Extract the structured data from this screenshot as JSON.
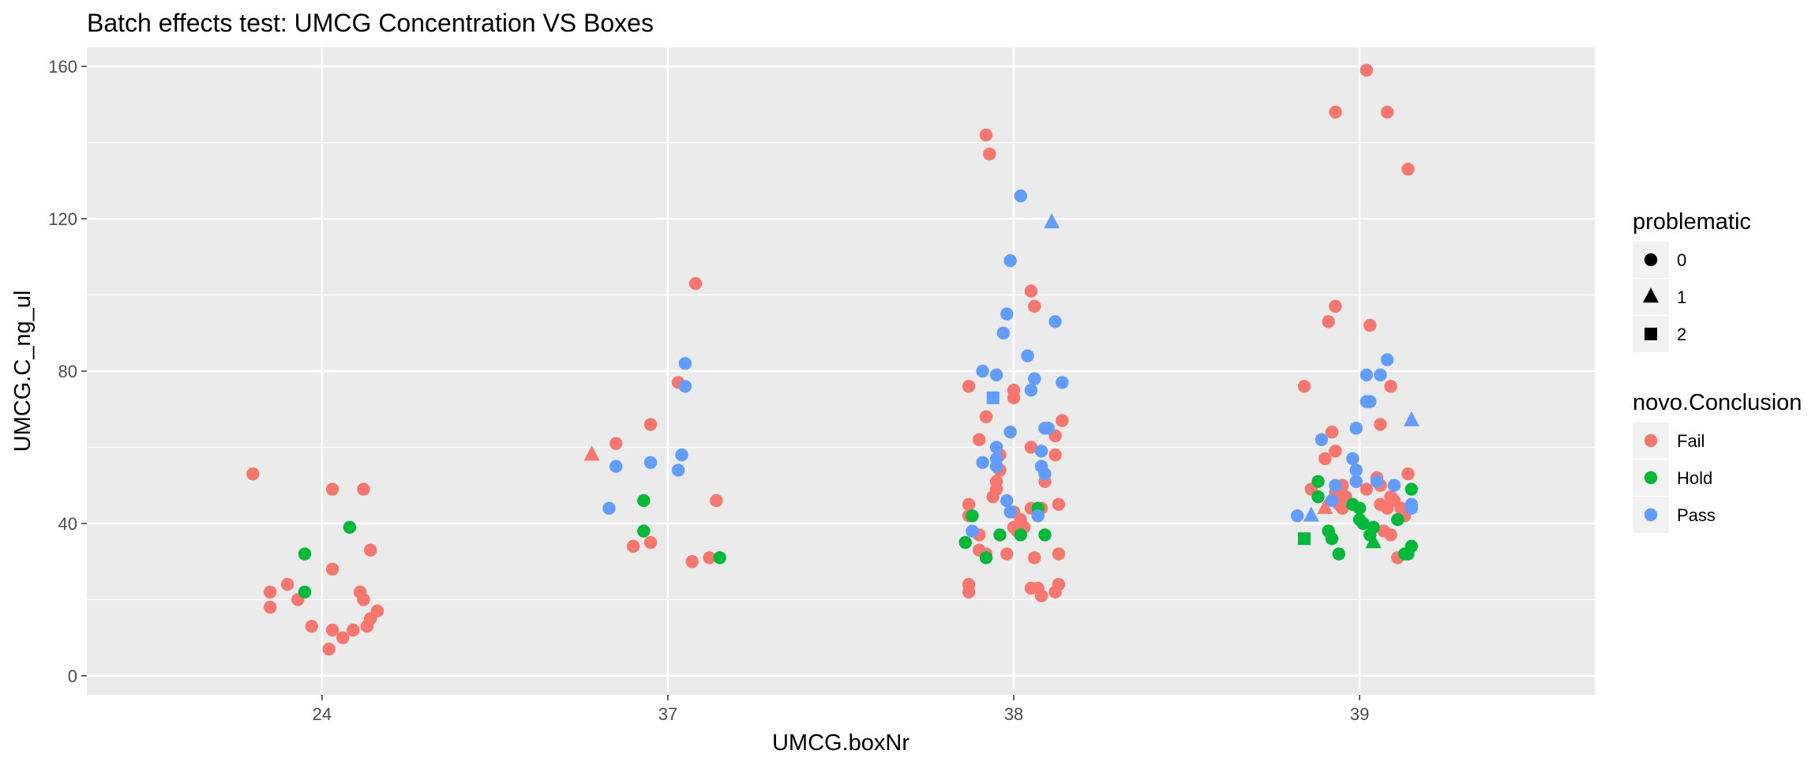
{
  "chart_data": {
    "type": "scatter",
    "title": "Batch effects test: UMCG Concentration VS Boxes",
    "xlabel": "UMCG.boxNr",
    "ylabel": "UMCG.C_ng_ul",
    "categories": [
      "24",
      "37",
      "38",
      "39"
    ],
    "ylim": [
      -5,
      165
    ],
    "yticks": [
      0,
      40,
      80,
      120,
      160
    ],
    "grid": true,
    "legend_placement": "right",
    "legends": [
      {
        "title": "problematic",
        "entries": [
          {
            "label": "0",
            "shape": "circle"
          },
          {
            "label": "1",
            "shape": "triangle"
          },
          {
            "label": "2",
            "shape": "square"
          }
        ]
      },
      {
        "title": "novo.Conclusion",
        "entries": [
          {
            "label": "Fail",
            "color": "#F8766D"
          },
          {
            "label": "Hold",
            "color": "#00BA38"
          },
          {
            "label": "Pass",
            "color": "#619CFF"
          }
        ]
      }
    ],
    "points": [
      [
        23.8,
        53,
        "Fail",
        0
      ],
      [
        23.9,
        24,
        "Fail",
        0
      ],
      [
        23.85,
        22,
        "Fail",
        0
      ],
      [
        23.85,
        18,
        "Fail",
        0
      ],
      [
        23.93,
        20,
        "Fail",
        0
      ],
      [
        23.97,
        13,
        "Fail",
        0
      ],
      [
        24.02,
        7,
        "Fail",
        0
      ],
      [
        24.03,
        12,
        "Fail",
        0
      ],
      [
        24.06,
        10,
        "Fail",
        0
      ],
      [
        24.09,
        12,
        "Fail",
        0
      ],
      [
        24.13,
        13,
        "Fail",
        0
      ],
      [
        24.14,
        15,
        "Fail",
        0
      ],
      [
        24.16,
        17,
        "Fail",
        0
      ],
      [
        24.12,
        20,
        "Fail",
        0
      ],
      [
        24.11,
        22,
        "Fail",
        0
      ],
      [
        24.14,
        33,
        "Fail",
        0
      ],
      [
        24.03,
        28,
        "Fail",
        0
      ],
      [
        24.03,
        49,
        "Fail",
        0
      ],
      [
        24.12,
        49,
        "Fail",
        0
      ],
      [
        23.95,
        32,
        "Hold",
        0
      ],
      [
        23.95,
        22,
        "Hold",
        0
      ],
      [
        24.08,
        39,
        "Hold",
        0
      ],
      [
        36.78,
        58,
        "Fail",
        1
      ],
      [
        36.85,
        61,
        "Fail",
        0
      ],
      [
        36.95,
        66,
        "Fail",
        0
      ],
      [
        37.03,
        77,
        "Fail",
        0
      ],
      [
        37.08,
        103,
        "Fail",
        0
      ],
      [
        37.14,
        46,
        "Fail",
        0
      ],
      [
        36.9,
        34,
        "Fail",
        0
      ],
      [
        36.95,
        35,
        "Fail",
        0
      ],
      [
        37.07,
        30,
        "Fail",
        0
      ],
      [
        37.12,
        31,
        "Fail",
        0
      ],
      [
        36.93,
        46,
        "Hold",
        0
      ],
      [
        36.93,
        38,
        "Hold",
        0
      ],
      [
        37.15,
        31,
        "Hold",
        0
      ],
      [
        37.05,
        82,
        "Pass",
        0
      ],
      [
        37.05,
        76,
        "Pass",
        0
      ],
      [
        37.04,
        58,
        "Pass",
        0
      ],
      [
        36.95,
        56,
        "Pass",
        0
      ],
      [
        37.03,
        54,
        "Pass",
        0
      ],
      [
        36.85,
        55,
        "Pass",
        0
      ],
      [
        36.83,
        44,
        "Pass",
        0
      ],
      [
        37.92,
        142,
        "Fail",
        0
      ],
      [
        37.93,
        137,
        "Fail",
        0
      ],
      [
        38.05,
        101,
        "Fail",
        0
      ],
      [
        38.06,
        97,
        "Fail",
        0
      ],
      [
        37.87,
        76,
        "Fail",
        0
      ],
      [
        38.0,
        75,
        "Fail",
        0
      ],
      [
        38.0,
        73,
        "Fail",
        0
      ],
      [
        37.92,
        68,
        "Fail",
        0
      ],
      [
        38.14,
        67,
        "Fail",
        0
      ],
      [
        38.12,
        63,
        "Fail",
        0
      ],
      [
        37.9,
        62,
        "Fail",
        0
      ],
      [
        38.05,
        60,
        "Fail",
        0
      ],
      [
        37.96,
        58,
        "Fail",
        0
      ],
      [
        38.12,
        58,
        "Fail",
        0
      ],
      [
        37.96,
        54,
        "Fail",
        0
      ],
      [
        37.95,
        51,
        "Fail",
        0
      ],
      [
        38.09,
        51,
        "Fail",
        0
      ],
      [
        37.95,
        49,
        "Fail",
        0
      ],
      [
        37.94,
        47,
        "Fail",
        0
      ],
      [
        37.87,
        45,
        "Fail",
        0
      ],
      [
        38.13,
        45,
        "Fail",
        0
      ],
      [
        38.05,
        44,
        "Fail",
        0
      ],
      [
        38.08,
        44,
        "Fail",
        0
      ],
      [
        37.87,
        42,
        "Fail",
        0
      ],
      [
        38.0,
        43,
        "Fail",
        0
      ],
      [
        38.02,
        41,
        "Fail",
        0
      ],
      [
        38.03,
        39,
        "Fail",
        0
      ],
      [
        38.0,
        39,
        "Fail",
        0
      ],
      [
        38.01,
        38,
        "Fail",
        0
      ],
      [
        37.9,
        37,
        "Fail",
        0
      ],
      [
        37.86,
        35,
        "Fail",
        0
      ],
      [
        37.9,
        33,
        "Fail",
        0
      ],
      [
        37.92,
        32,
        "Fail",
        0
      ],
      [
        37.98,
        32,
        "Fail",
        0
      ],
      [
        38.06,
        31,
        "Fail",
        0
      ],
      [
        38.13,
        32,
        "Fail",
        0
      ],
      [
        37.87,
        24,
        "Fail",
        0
      ],
      [
        37.87,
        22,
        "Fail",
        0
      ],
      [
        38.05,
        23,
        "Fail",
        0
      ],
      [
        38.07,
        23,
        "Fail",
        0
      ],
      [
        38.08,
        21,
        "Fail",
        0
      ],
      [
        38.12,
        22,
        "Fail",
        0
      ],
      [
        38.13,
        24,
        "Fail",
        0
      ],
      [
        37.88,
        42,
        "Hold",
        0
      ],
      [
        37.86,
        35,
        "Hold",
        0
      ],
      [
        37.92,
        31,
        "Hold",
        0
      ],
      [
        37.96,
        37,
        "Hold",
        0
      ],
      [
        38.02,
        37,
        "Hold",
        0
      ],
      [
        38.09,
        37,
        "Hold",
        0
      ],
      [
        38.07,
        44,
        "Hold",
        0
      ],
      [
        38.02,
        126,
        "Pass",
        0
      ],
      [
        38.11,
        119,
        "Pass",
        1
      ],
      [
        37.99,
        109,
        "Pass",
        0
      ],
      [
        37.98,
        95,
        "Pass",
        0
      ],
      [
        37.97,
        90,
        "Pass",
        0
      ],
      [
        38.12,
        93,
        "Pass",
        0
      ],
      [
        38.04,
        84,
        "Pass",
        0
      ],
      [
        37.91,
        80,
        "Pass",
        0
      ],
      [
        37.95,
        79,
        "Pass",
        0
      ],
      [
        38.06,
        78,
        "Pass",
        0
      ],
      [
        38.14,
        77,
        "Pass",
        0
      ],
      [
        38.05,
        75,
        "Pass",
        0
      ],
      [
        37.94,
        73,
        "Pass",
        2
      ],
      [
        38.09,
        65,
        "Pass",
        0
      ],
      [
        38.1,
        65,
        "Pass",
        0
      ],
      [
        37.99,
        64,
        "Pass",
        0
      ],
      [
        37.95,
        60,
        "Pass",
        0
      ],
      [
        38.08,
        59,
        "Pass",
        0
      ],
      [
        37.91,
        56,
        "Pass",
        0
      ],
      [
        37.95,
        57,
        "Pass",
        0
      ],
      [
        37.95,
        55,
        "Pass",
        0
      ],
      [
        38.08,
        55,
        "Pass",
        0
      ],
      [
        38.09,
        53,
        "Pass",
        0
      ],
      [
        37.98,
        46,
        "Pass",
        0
      ],
      [
        37.99,
        43,
        "Pass",
        0
      ],
      [
        38.07,
        42,
        "Pass",
        0
      ],
      [
        37.88,
        38,
        "Pass",
        0
      ],
      [
        39.02,
        159,
        "Fail",
        0
      ],
      [
        38.93,
        148,
        "Fail",
        0
      ],
      [
        39.08,
        148,
        "Fail",
        0
      ],
      [
        39.14,
        133,
        "Fail",
        0
      ],
      [
        38.93,
        97,
        "Fail",
        0
      ],
      [
        38.91,
        93,
        "Fail",
        0
      ],
      [
        39.03,
        92,
        "Fail",
        0
      ],
      [
        38.84,
        76,
        "Fail",
        0
      ],
      [
        39.09,
        76,
        "Fail",
        0
      ],
      [
        39.06,
        66,
        "Fail",
        0
      ],
      [
        38.92,
        64,
        "Fail",
        0
      ],
      [
        38.93,
        59,
        "Fail",
        0
      ],
      [
        38.9,
        57,
        "Fail",
        0
      ],
      [
        39.14,
        53,
        "Fail",
        0
      ],
      [
        39.05,
        52,
        "Fail",
        0
      ],
      [
        38.95,
        50,
        "Fail",
        0
      ],
      [
        38.99,
        51,
        "Fail",
        0
      ],
      [
        39.02,
        49,
        "Fail",
        0
      ],
      [
        39.06,
        50,
        "Fail",
        0
      ],
      [
        38.86,
        49,
        "Fail",
        0
      ],
      [
        38.93,
        48,
        "Fail",
        0
      ],
      [
        38.96,
        47,
        "Fail",
        0
      ],
      [
        39.09,
        47,
        "Fail",
        0
      ],
      [
        39.1,
        46,
        "Fail",
        0
      ],
      [
        38.94,
        45,
        "Fail",
        0
      ],
      [
        39.06,
        45,
        "Fail",
        0
      ],
      [
        38.95,
        44,
        "Fail",
        0
      ],
      [
        39.08,
        44,
        "Fail",
        0
      ],
      [
        39.12,
        44,
        "Fail",
        0
      ],
      [
        39.13,
        42,
        "Fail",
        0
      ],
      [
        39.07,
        38,
        "Fail",
        0
      ],
      [
        39.09,
        37,
        "Fail",
        0
      ],
      [
        39.11,
        31,
        "Fail",
        0
      ],
      [
        38.9,
        44,
        "Fail",
        1
      ],
      [
        38.88,
        51,
        "Hold",
        0
      ],
      [
        38.88,
        47,
        "Hold",
        0
      ],
      [
        38.98,
        45,
        "Hold",
        0
      ],
      [
        39.0,
        44,
        "Hold",
        0
      ],
      [
        39.0,
        41,
        "Hold",
        0
      ],
      [
        39.01,
        40,
        "Hold",
        0
      ],
      [
        39.04,
        39,
        "Hold",
        0
      ],
      [
        39.11,
        41,
        "Hold",
        0
      ],
      [
        39.15,
        49,
        "Hold",
        0
      ],
      [
        38.91,
        38,
        "Hold",
        0
      ],
      [
        38.92,
        36,
        "Hold",
        0
      ],
      [
        39.03,
        37,
        "Hold",
        0
      ],
      [
        39.04,
        35,
        "Hold",
        1
      ],
      [
        38.94,
        32,
        "Hold",
        0
      ],
      [
        39.15,
        34,
        "Hold",
        0
      ],
      [
        39.14,
        32,
        "Hold",
        0
      ],
      [
        39.13,
        32,
        "Hold",
        0
      ],
      [
        38.84,
        36,
        "Hold",
        2
      ],
      [
        39.08,
        83,
        "Pass",
        0
      ],
      [
        39.02,
        79,
        "Pass",
        0
      ],
      [
        39.06,
        79,
        "Pass",
        0
      ],
      [
        39.03,
        72,
        "Pass",
        0
      ],
      [
        39.02,
        72,
        "Pass",
        0
      ],
      [
        39.15,
        67,
        "Pass",
        1
      ],
      [
        38.99,
        65,
        "Pass",
        0
      ],
      [
        38.89,
        62,
        "Pass",
        0
      ],
      [
        38.98,
        57,
        "Pass",
        0
      ],
      [
        38.99,
        54,
        "Pass",
        0
      ],
      [
        38.99,
        51,
        "Pass",
        0
      ],
      [
        39.05,
        51,
        "Pass",
        0
      ],
      [
        39.1,
        50,
        "Pass",
        0
      ],
      [
        38.93,
        50,
        "Pass",
        0
      ],
      [
        38.92,
        46,
        "Pass",
        0
      ],
      [
        39.15,
        45,
        "Pass",
        0
      ],
      [
        39.15,
        44,
        "Pass",
        0
      ],
      [
        38.82,
        42,
        "Pass",
        0
      ],
      [
        38.86,
        42,
        "Pass",
        1
      ]
    ]
  }
}
